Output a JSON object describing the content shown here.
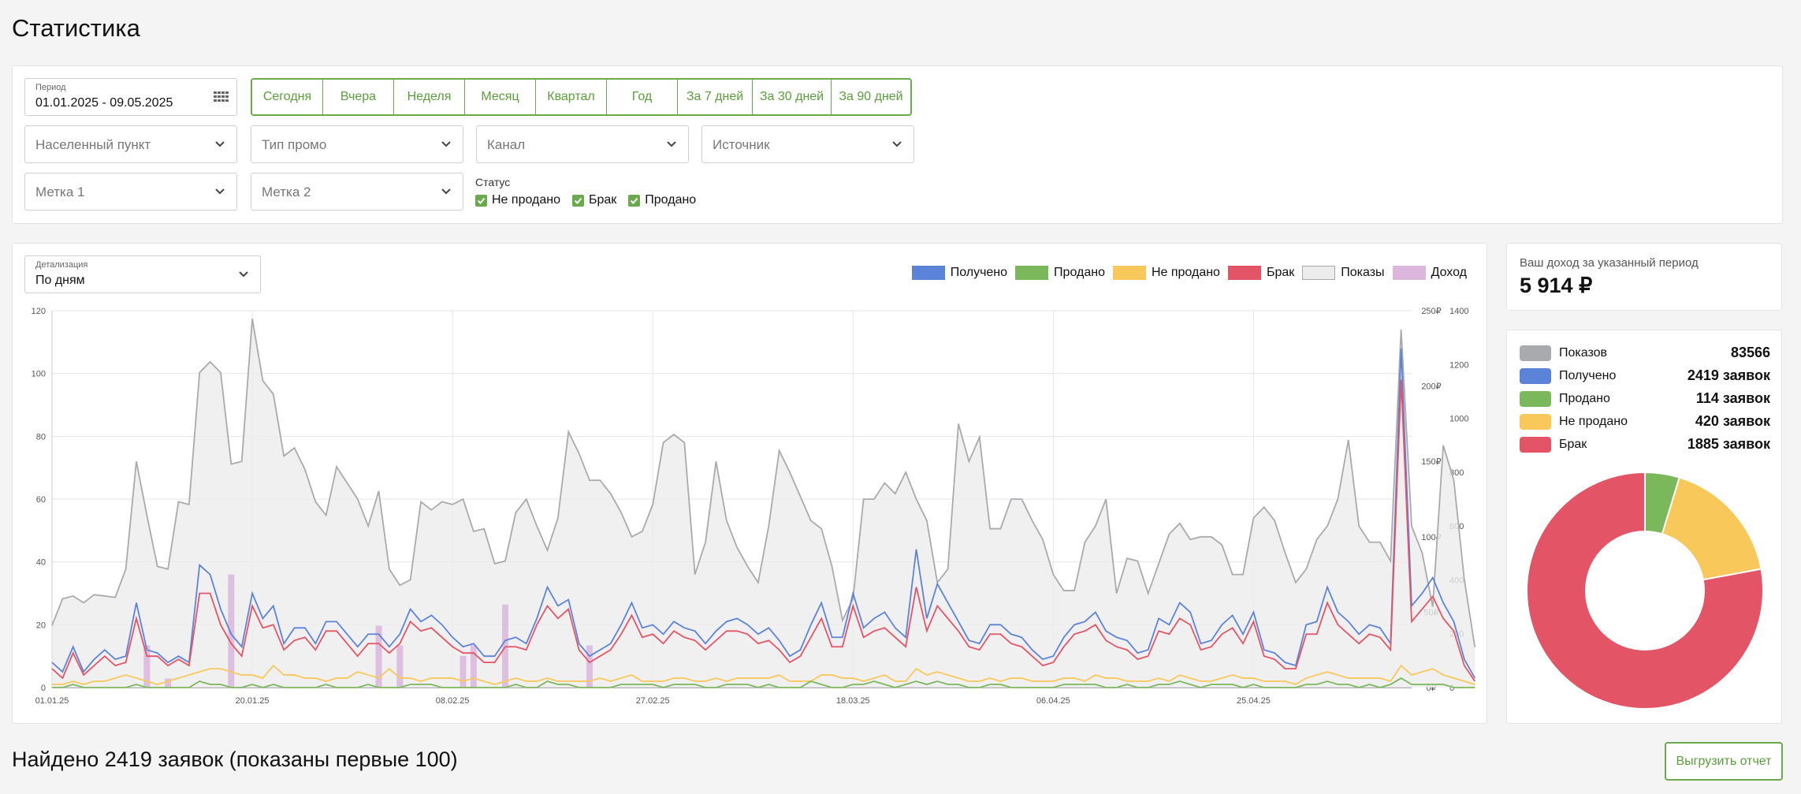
{
  "page": {
    "title": "Статистика"
  },
  "filters": {
    "period": {
      "label": "Период",
      "value": "01.01.2025 - 09.05.2025"
    },
    "quick_periods": [
      "Сегодня",
      "Вчера",
      "Неделя",
      "Месяц",
      "Квартал",
      "Год",
      "За 7 дней",
      "За 30 дней",
      "За 90 дней"
    ],
    "selects": {
      "city": "Населенный пункт",
      "promo_type": "Тип промо",
      "channel": "Канал",
      "source": "Источник",
      "tag1": "Метка 1",
      "tag2": "Метка 2"
    },
    "status": {
      "label": "Статус",
      "options": [
        {
          "label": "Не продано",
          "checked": true
        },
        {
          "label": "Брак",
          "checked": true
        },
        {
          "label": "Продано",
          "checked": true
        }
      ]
    }
  },
  "detail": {
    "label": "Детализация",
    "value": "По дням"
  },
  "legend": [
    {
      "label": "Получено",
      "color": "#5b84d8"
    },
    {
      "label": "Продано",
      "color": "#7ab85b"
    },
    {
      "label": "Не продано",
      "color": "#f8c85a"
    },
    {
      "label": "Брак",
      "color": "#e35566"
    },
    {
      "label": "Показы",
      "color": "#ececec"
    },
    {
      "label": "Доход",
      "color": "#dcb6dc"
    }
  ],
  "chart_data": {
    "type": "line",
    "x_tick_labels": [
      "01.01.25",
      "20.01.25",
      "08.02.25",
      "27.02.25",
      "18.03.25",
      "06.04.25",
      "25.04.25"
    ],
    "y_left": {
      "range": [
        0,
        120
      ],
      "ticks": [
        "0",
        "20",
        "40",
        "60",
        "80",
        "100",
        "120"
      ]
    },
    "y_income": {
      "range": [
        0,
        250
      ],
      "ticks": [
        "0₽",
        "50₽",
        "100₽",
        "150₽",
        "200₽",
        "250₽"
      ]
    },
    "y_shows": {
      "range": [
        0,
        1400
      ],
      "ticks": [
        "0",
        "200",
        "400",
        "600",
        "800",
        "1000",
        "1200",
        "1400"
      ]
    },
    "x_range": [
      0,
      129
    ],
    "series": [
      {
        "name": "Показы",
        "axis": "shows",
        "color": "#a9aaad",
        "values": [
          230,
          330,
          340,
          315,
          345,
          340,
          335,
          440,
          840,
          640,
          450,
          440,
          690,
          680,
          1170,
          1210,
          1170,
          830,
          840,
          1370,
          1140,
          1090,
          860,
          890,
          810,
          690,
          640,
          820,
          760,
          700,
          600,
          730,
          440,
          380,
          400,
          690,
          660,
          690,
          680,
          700,
          580,
          590,
          460,
          470,
          650,
          700,
          600,
          510,
          630,
          950,
          870,
          770,
          770,
          720,
          650,
          560,
          580,
          680,
          910,
          940,
          910,
          420,
          540,
          840,
          620,
          520,
          450,
          390,
          600,
          880,
          800,
          710,
          620,
          590,
          450,
          250,
          330,
          700,
          700,
          760,
          720,
          800,
          700,
          620,
          390,
          440,
          980,
          840,
          930,
          590,
          590,
          700,
          700,
          620,
          550,
          420,
          360,
          360,
          540,
          600,
          700,
          350,
          480,
          470,
          350,
          460,
          570,
          610,
          550,
          560,
          560,
          530,
          420,
          420,
          630,
          670,
          620,
          500,
          390,
          440,
          550,
          600,
          700,
          920,
          600,
          540,
          540,
          470,
          1330,
          600,
          500,
          300,
          900,
          770,
          400,
          150
        ]
      },
      {
        "name": "Доход",
        "axis": "income",
        "color": "#dcb6dc",
        "values": [
          0,
          0,
          0,
          0,
          0,
          0,
          0,
          0,
          0,
          28,
          0,
          6,
          0,
          0,
          0,
          0,
          0,
          75,
          0,
          0,
          0,
          0,
          0,
          0,
          0,
          0,
          0,
          0,
          0,
          0,
          0,
          41,
          0,
          28,
          0,
          0,
          0,
          0,
          0,
          21,
          28,
          0,
          0,
          55,
          0,
          0,
          0,
          0,
          0,
          0,
          0,
          28,
          0,
          0,
          0,
          0,
          0,
          0,
          0,
          0,
          0,
          0,
          0,
          0,
          0,
          0,
          0,
          0,
          0,
          0,
          0,
          0,
          0,
          0,
          0,
          0,
          0,
          0,
          0,
          0,
          0,
          0,
          0,
          0,
          0,
          0,
          0,
          0,
          0,
          0,
          0,
          0,
          0,
          0,
          0,
          0,
          0,
          0,
          0,
          0,
          0,
          0,
          0,
          0,
          0,
          0,
          0,
          0,
          0,
          0,
          0,
          0,
          0,
          0,
          0,
          0,
          0,
          0,
          0,
          0,
          0,
          0,
          0,
          0,
          0,
          0,
          0,
          0,
          0,
          0
        ]
      },
      {
        "name": "Получено",
        "axis": "left",
        "color": "#5b84d8",
        "values": [
          8,
          5,
          13,
          5,
          9,
          12,
          9,
          10,
          27,
          12,
          11,
          8,
          10,
          8,
          39,
          36,
          25,
          17,
          13,
          30,
          22,
          26,
          14,
          19,
          19,
          14,
          21,
          21,
          17,
          13,
          17,
          17,
          13,
          17,
          25,
          21,
          23,
          20,
          16,
          13,
          14,
          10,
          10,
          15,
          16,
          14,
          22,
          32,
          26,
          28,
          14,
          10,
          12,
          14,
          20,
          27,
          19,
          20,
          17,
          21,
          19,
          18,
          14,
          18,
          21,
          22,
          20,
          17,
          19,
          15,
          10,
          12,
          20,
          27,
          16,
          16,
          30,
          19,
          22,
          24,
          19,
          16,
          44,
          22,
          33,
          27,
          21,
          15,
          14,
          20,
          20,
          17,
          16,
          12,
          9,
          10,
          16,
          20,
          21,
          24,
          18,
          16,
          15,
          11,
          12,
          22,
          20,
          27,
          24,
          14,
          15,
          20,
          23,
          17,
          24,
          12,
          11,
          8,
          7,
          20,
          21,
          32,
          24,
          21,
          17,
          20,
          19,
          14,
          108,
          26,
          30,
          35,
          27,
          21,
          9,
          3
        ]
      },
      {
        "name": "Брак",
        "axis": "left",
        "color": "#e35566",
        "values": [
          6,
          3,
          11,
          4,
          7,
          10,
          7,
          8,
          22,
          10,
          10,
          7,
          9,
          7,
          30,
          30,
          20,
          14,
          10,
          26,
          19,
          20,
          12,
          15,
          16,
          12,
          18,
          18,
          14,
          10,
          14,
          14,
          11,
          14,
          21,
          18,
          19,
          16,
          13,
          11,
          11,
          8,
          8,
          13,
          13,
          12,
          20,
          26,
          22,
          25,
          12,
          8,
          10,
          12,
          17,
          23,
          16,
          17,
          14,
          18,
          16,
          15,
          12,
          15,
          18,
          18,
          17,
          14,
          15,
          12,
          8,
          10,
          16,
          22,
          13,
          13,
          26,
          16,
          18,
          19,
          16,
          13,
          32,
          18,
          26,
          22,
          18,
          13,
          12,
          17,
          17,
          14,
          13,
          10,
          7,
          8,
          13,
          17,
          18,
          20,
          15,
          13,
          12,
          9,
          10,
          18,
          17,
          22,
          20,
          12,
          13,
          17,
          19,
          14,
          21,
          10,
          9,
          6,
          6,
          17,
          17,
          27,
          20,
          17,
          14,
          17,
          16,
          12,
          98,
          21,
          25,
          29,
          22,
          18,
          7,
          2
        ]
      },
      {
        "name": "Не продано",
        "axis": "left",
        "color": "#f8c85a",
        "values": [
          1,
          1,
          2,
          1,
          2,
          2,
          3,
          4,
          3,
          2,
          1,
          2,
          3,
          4,
          5,
          6,
          6,
          5,
          4,
          4,
          3,
          7,
          4,
          4,
          3,
          3,
          2,
          3,
          3,
          5,
          4,
          3,
          6,
          3,
          3,
          2,
          3,
          3,
          3,
          2,
          3,
          2,
          1,
          2,
          3,
          2,
          2,
          3,
          2,
          2,
          2,
          2,
          3,
          2,
          3,
          4,
          2,
          2,
          2,
          3,
          3,
          2,
          2,
          3,
          2,
          3,
          3,
          3,
          3,
          4,
          2,
          2,
          2,
          4,
          4,
          3,
          3,
          2,
          3,
          4,
          2,
          2,
          6,
          4,
          5,
          4,
          3,
          2,
          2,
          3,
          2,
          3,
          3,
          2,
          2,
          2,
          3,
          3,
          2,
          4,
          3,
          3,
          2,
          2,
          2,
          3,
          2,
          4,
          3,
          2,
          2,
          3,
          4,
          3,
          3,
          2,
          2,
          2,
          1,
          3,
          4,
          5,
          4,
          3,
          3,
          3,
          3,
          2,
          7,
          4,
          5,
          6,
          4,
          3,
          2,
          1
        ]
      },
      {
        "name": "Продано",
        "axis": "left",
        "color": "#7ab85b",
        "values": [
          0,
          0,
          1,
          0,
          0,
          0,
          0,
          0,
          1,
          0,
          0,
          0,
          0,
          0,
          2,
          1,
          1,
          0,
          0,
          1,
          0,
          1,
          0,
          0,
          0,
          0,
          1,
          0,
          0,
          0,
          1,
          0,
          0,
          0,
          1,
          1,
          1,
          0,
          0,
          0,
          0,
          0,
          0,
          0,
          1,
          0,
          0,
          2,
          1,
          1,
          0,
          0,
          0,
          0,
          1,
          1,
          1,
          1,
          0,
          1,
          1,
          1,
          0,
          0,
          1,
          1,
          1,
          0,
          1,
          0,
          0,
          0,
          2,
          1,
          0,
          0,
          1,
          1,
          2,
          1,
          0,
          1,
          2,
          1,
          2,
          1,
          1,
          0,
          0,
          1,
          1,
          0,
          0,
          0,
          0,
          0,
          1,
          1,
          1,
          1,
          0,
          0,
          1,
          0,
          0,
          1,
          1,
          2,
          1,
          0,
          1,
          1,
          1,
          0,
          1,
          0,
          0,
          0,
          0,
          1,
          1,
          2,
          1,
          1,
          0,
          1,
          0,
          1,
          3,
          1,
          1,
          1,
          1,
          0,
          0,
          0
        ]
      }
    ]
  },
  "income": {
    "label": "Ваш доход за указанный период",
    "value": "5 914 ₽"
  },
  "summary": [
    {
      "label": "Показов",
      "value": "83566",
      "color": "#a9aaad"
    },
    {
      "label": "Получено",
      "value": "2419 заявок",
      "color": "#5b84d8"
    },
    {
      "label": "Продано",
      "value": "114 заявок",
      "color": "#7ab85b"
    },
    {
      "label": "Не продано",
      "value": "420 заявок",
      "color": "#f8c85a"
    },
    {
      "label": "Брак",
      "value": "1885 заявок",
      "color": "#e35566"
    }
  ],
  "donut": [
    {
      "name": "Продано",
      "value": 114,
      "color": "#7ab85b"
    },
    {
      "name": "Не продано",
      "value": 420,
      "color": "#f8c85a"
    },
    {
      "name": "Брак",
      "value": 1885,
      "color": "#e35566"
    }
  ],
  "results": {
    "found": "Найдено 2419 заявок (показаны первые 100)",
    "export": "Выгрузить отчет"
  }
}
